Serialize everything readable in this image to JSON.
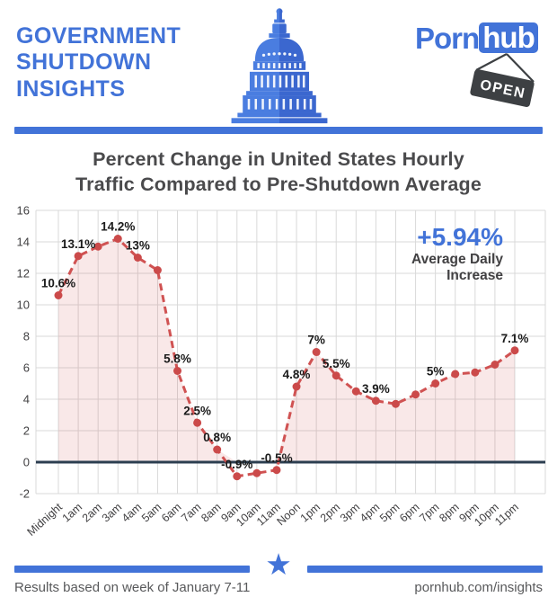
{
  "header": {
    "line1": "GOVERNMENT",
    "line2": "SHUTDOWN",
    "line3": "INSIGHTS"
  },
  "logo": {
    "word": "Porn",
    "tld": "hub",
    "sign_label": "OPEN"
  },
  "title": {
    "line1": "Percent Change in United States Hourly",
    "line2": "Traffic Compared to Pre-Shutdown Average"
  },
  "chart_data": {
    "type": "line",
    "title": "Percent Change in United States Hourly Traffic Compared to Pre-Shutdown Average",
    "x_categories": [
      "Midnight",
      "1am",
      "2am",
      "3am",
      "4am",
      "5am",
      "6am",
      "7am",
      "8am",
      "9am",
      "10am",
      "11am",
      "Noon",
      "1pm",
      "2pm",
      "3pm",
      "4pm",
      "5pm",
      "6pm",
      "7pm",
      "8pm",
      "9pm",
      "10pm",
      "11pm"
    ],
    "values": [
      10.6,
      13.1,
      13.7,
      14.2,
      13,
      12.2,
      5.8,
      2.5,
      0.8,
      -0.9,
      -0.7,
      -0.5,
      4.8,
      7,
      5.5,
      4.5,
      3.9,
      3.7,
      4.3,
      5,
      5.6,
      5.7,
      6.2,
      7.1
    ],
    "point_labels": [
      "10.6%",
      "13.1%",
      "",
      "14.2%",
      "13%",
      "",
      "5.8%",
      "2.5%",
      "0.8%",
      "-0.9%",
      "",
      "-0.5%",
      "4.8%",
      "7%",
      "5.5%",
      "",
      "3.9%",
      "",
      "",
      "5%",
      "",
      "",
      "",
      "7.1%"
    ],
    "ylim": [
      -2,
      16
    ],
    "ytick_step": 2,
    "grid": true,
    "line_color": "#d05252",
    "marker_color": "#cb4a4a",
    "fill_color": "rgba(206,76,76,0.13)",
    "zero_line_color": "#2c3e50",
    "grid_color": "#d9d9d9",
    "annotation": {
      "value": "+5.94%",
      "label_line1": "Average Daily",
      "label_line2": "Increase",
      "value_color": "#4273d8"
    }
  },
  "footer": {
    "left_text": "Results based on week of January 7-11",
    "right_text": "pornhub.com/insights",
    "star_icon": "★"
  },
  "colors": {
    "brand_blue": "#4273d8",
    "capitol_light": "#4a7de0",
    "capitol_dark": "#3b67cf",
    "sign_dark": "#3d4043"
  }
}
